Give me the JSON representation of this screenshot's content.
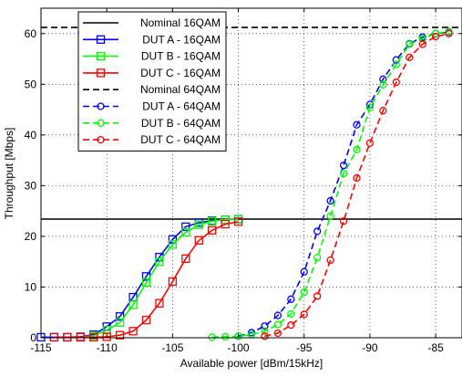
{
  "chart_data": {
    "type": "line",
    "xlabel": "Available power [dBm/15kHz]",
    "ylabel": "Throughput [Mbps]",
    "xlim": [
      -115,
      -83
    ],
    "ylim": [
      0,
      65
    ],
    "x_ticks": [
      -115,
      -110,
      -105,
      -100,
      -95,
      -90,
      -85
    ],
    "y_ticks": [
      0,
      10,
      20,
      30,
      40,
      50,
      60
    ],
    "grid": true,
    "legend_position": "top-left",
    "series": [
      {
        "name": "Nominal 16QAM",
        "color": "#000000",
        "dash": "solid",
        "marker": "none",
        "x": [
          -115,
          -83
        ],
        "y": [
          23.4,
          23.4
        ]
      },
      {
        "name": "DUT A - 16QAM",
        "color": "#0000ff",
        "dash": "solid",
        "marker": "square",
        "x": [
          -115,
          -114,
          -113,
          -112,
          -111,
          -110,
          -109,
          -108,
          -107,
          -106,
          -105,
          -104,
          -103,
          -102,
          -101,
          -100
        ],
        "y": [
          0.1,
          0.1,
          0.1,
          0.2,
          0.6,
          2.2,
          4.2,
          8.0,
          12.1,
          15.9,
          19.4,
          21.9,
          22.7,
          23.1,
          23.3,
          23.4
        ]
      },
      {
        "name": "DUT B - 16QAM",
        "color": "#00ff00",
        "dash": "solid",
        "marker": "square",
        "x": [
          -112,
          -111,
          -110,
          -109,
          -108,
          -107,
          -106,
          -105,
          -104,
          -103,
          -102,
          -101,
          -100
        ],
        "y": [
          0.1,
          0.4,
          1.5,
          3.0,
          6.5,
          10.9,
          15.0,
          18.4,
          20.8,
          22.3,
          23.0,
          23.3,
          23.4
        ]
      },
      {
        "name": "DUT C - 16QAM",
        "color": "#ff0000",
        "dash": "solid",
        "marker": "square",
        "x": [
          -114,
          -113,
          -112,
          -111,
          -110,
          -109,
          -108,
          -107,
          -106,
          -105,
          -104,
          -103,
          -102,
          -101,
          -100
        ],
        "y": [
          0.1,
          0.1,
          0.1,
          0.1,
          0.2,
          0.5,
          1.3,
          3.5,
          6.8,
          11.1,
          15.6,
          19.2,
          21.2,
          22.4,
          22.9
        ]
      },
      {
        "name": "Nominal 64QAM",
        "color": "#000000",
        "dash": "dashed",
        "marker": "none",
        "x": [
          -115,
          -83
        ],
        "y": [
          61.2,
          61.2
        ]
      },
      {
        "name": "DUT A - 64QAM",
        "color": "#0000ff",
        "dash": "dashed",
        "marker": "circle",
        "x": [
          -100,
          -99,
          -98,
          -97,
          -96,
          -95,
          -94,
          -93,
          -92,
          -91,
          -90,
          -89,
          -88,
          -87,
          -86,
          -85,
          -84
        ],
        "y": [
          0.3,
          1.0,
          2.3,
          4.4,
          7.6,
          13.0,
          21.0,
          27.0,
          34.0,
          42.0,
          46.0,
          51.0,
          54.8,
          58.0,
          59.3,
          60.0,
          60.3
        ]
      },
      {
        "name": "DUT B - 64QAM",
        "color": "#00ff00",
        "dash": "dashed",
        "marker": "circle",
        "x": [
          -102,
          -101,
          -100,
          -99,
          -98,
          -97,
          -96,
          -95,
          -94,
          -93,
          -92,
          -91,
          -90,
          -89,
          -88,
          -87,
          -86,
          -85,
          -84
        ],
        "y": [
          0.1,
          0.2,
          0.3,
          0.6,
          1.3,
          2.6,
          4.7,
          9.0,
          15.8,
          24.0,
          32.4,
          37.1,
          45.4,
          49.9,
          53.9,
          57.9,
          59.0,
          60.0,
          60.4
        ]
      },
      {
        "name": "DUT C - 64QAM",
        "color": "#ff0000",
        "dash": "dashed",
        "marker": "circle",
        "x": [
          -98,
          -97,
          -96,
          -95,
          -94,
          -93,
          -92,
          -91,
          -90,
          -89,
          -88,
          -87,
          -86,
          -85,
          -84
        ],
        "y": [
          0.3,
          0.9,
          2.5,
          4.6,
          8.2,
          15.3,
          23.0,
          31.5,
          38.4,
          44.8,
          50.4,
          55.3,
          57.9,
          59.4,
          60.0
        ]
      }
    ]
  }
}
